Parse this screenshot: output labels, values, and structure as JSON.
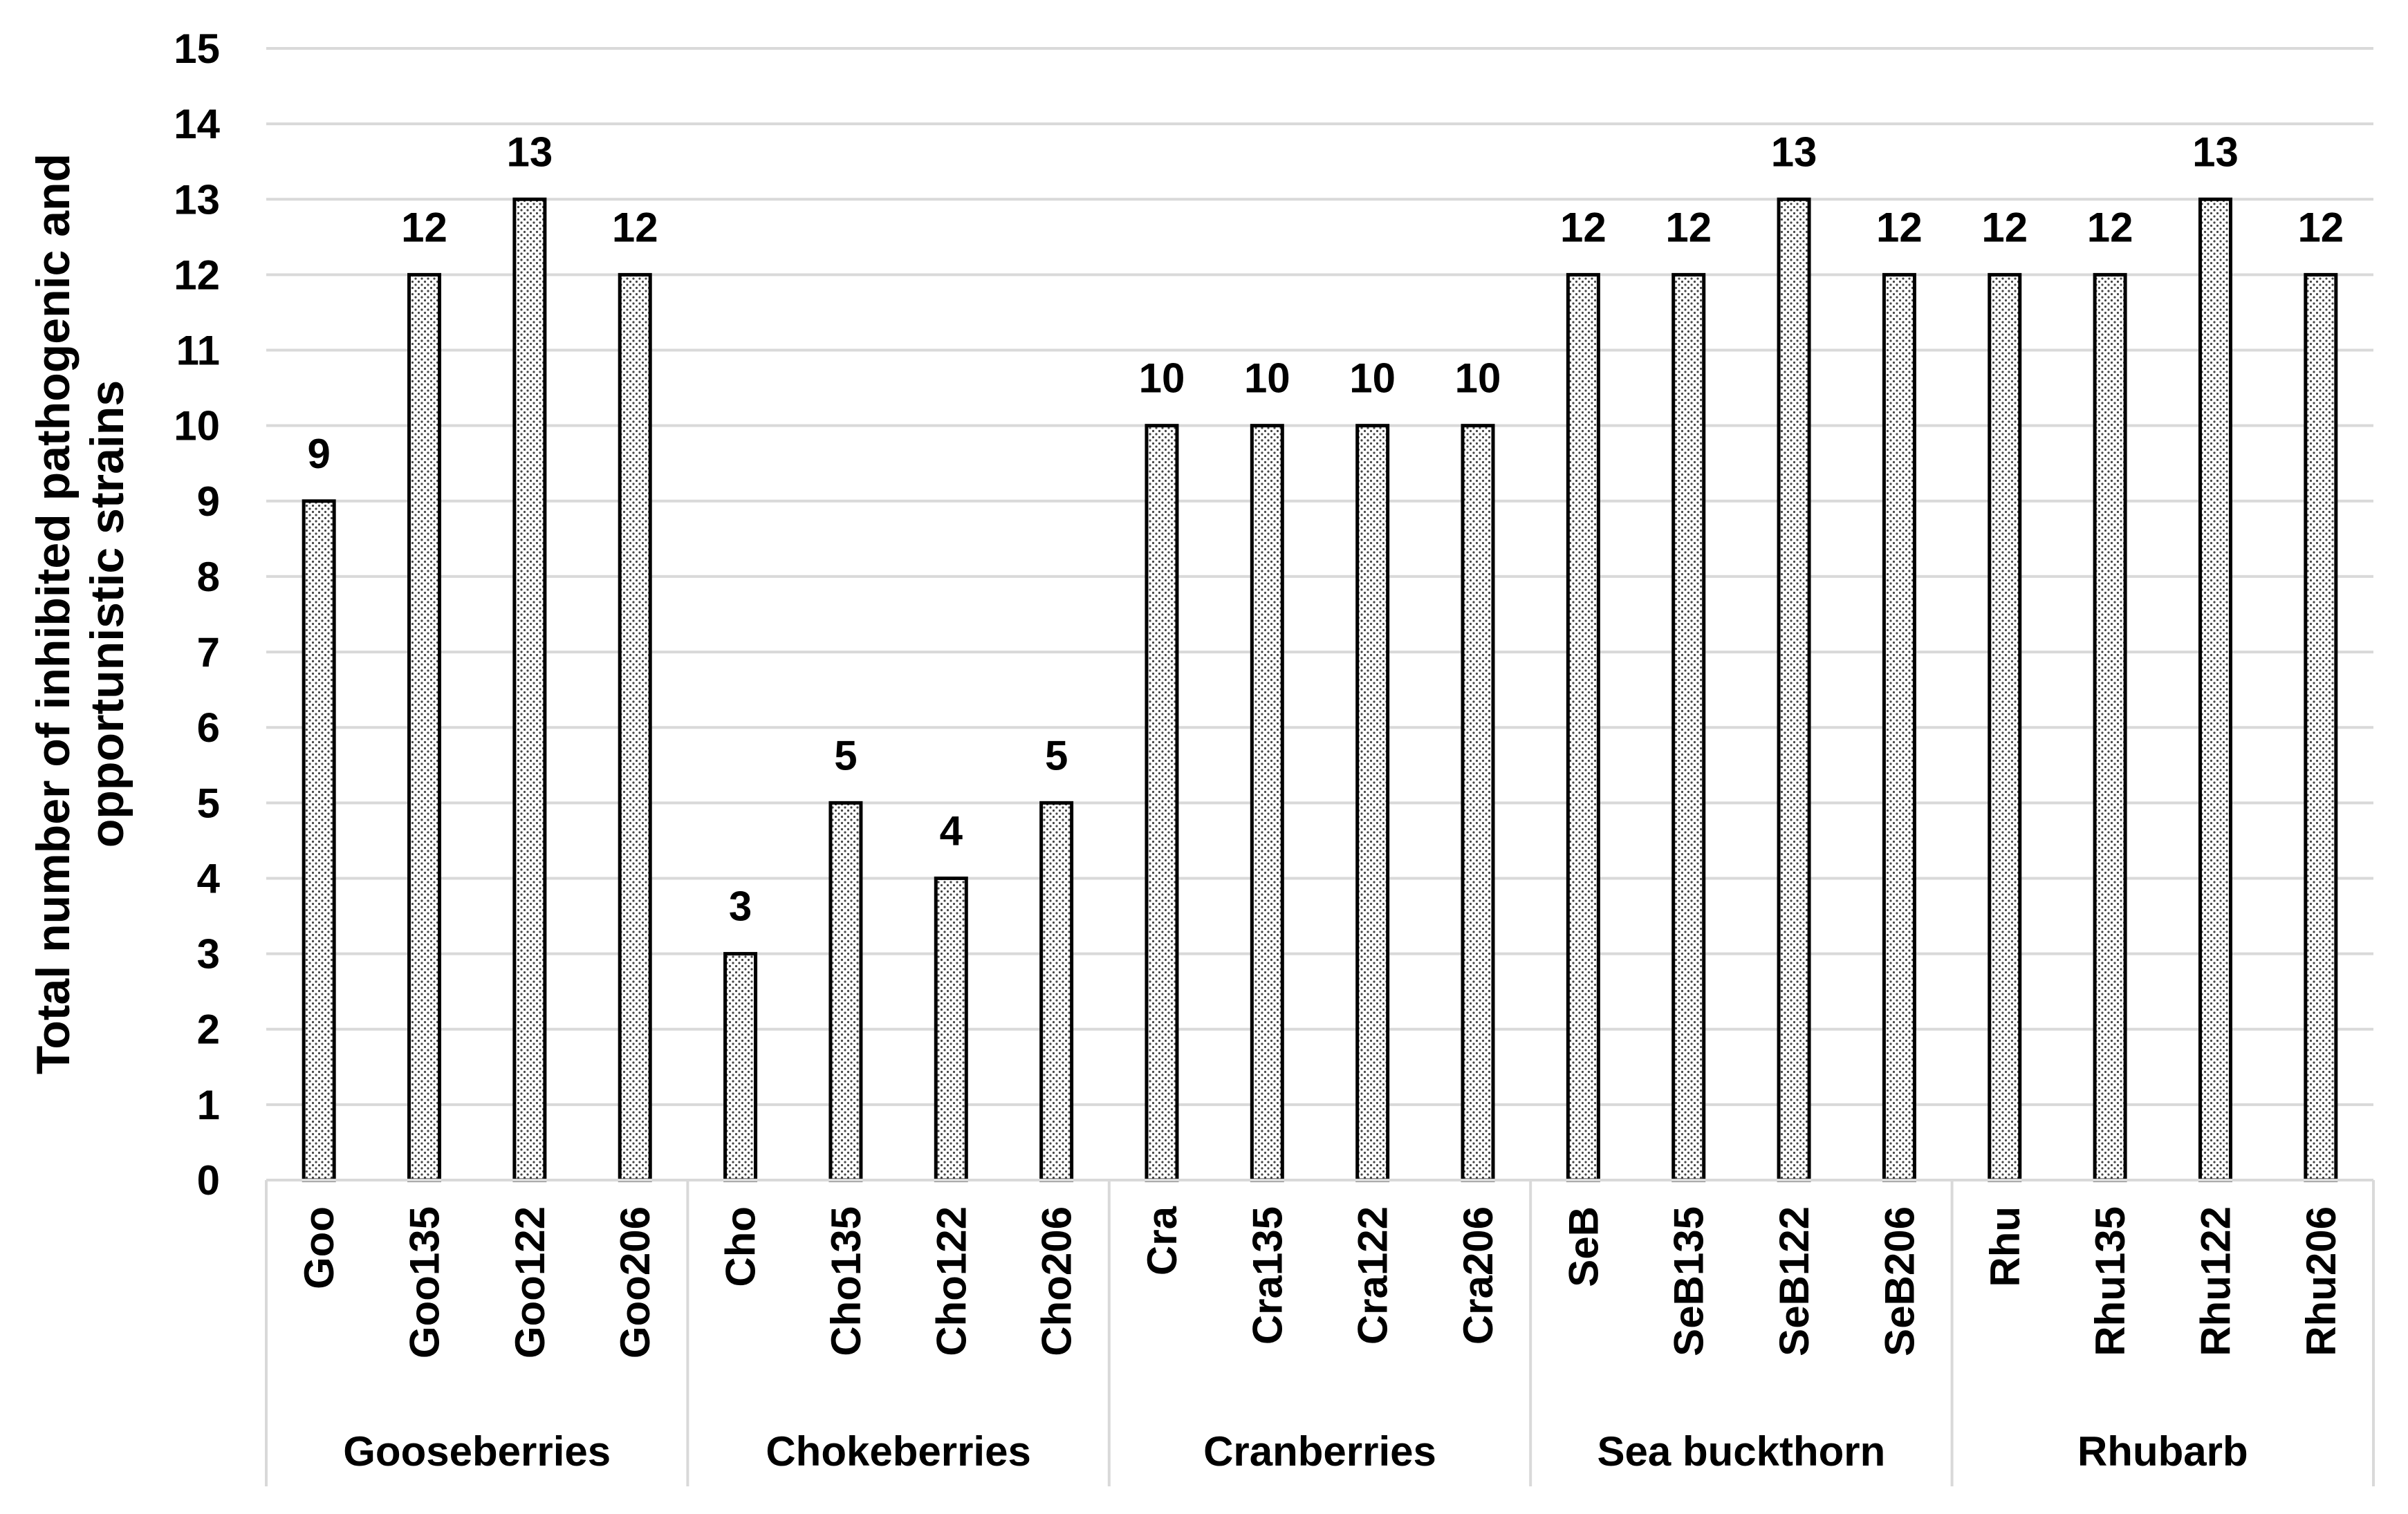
{
  "chart_data": {
    "type": "bar",
    "ylabel": "Total number of inhibited pathogenic and opportunistic strains",
    "xlabel": "",
    "ylim": [
      0,
      15
    ],
    "yticks": [
      0,
      1,
      2,
      3,
      4,
      5,
      6,
      7,
      8,
      9,
      10,
      11,
      12,
      13,
      14,
      15
    ],
    "grid": true,
    "pattern": "dotted",
    "groups": [
      {
        "name": "Gooseberries",
        "categories": [
          "Goo",
          "Goo135",
          "Goo122",
          "Goo206"
        ],
        "values": [
          9,
          12,
          13,
          12
        ]
      },
      {
        "name": "Chokeberries",
        "categories": [
          "Cho",
          "Cho135",
          "Cho122",
          "Cho206"
        ],
        "values": [
          3,
          5,
          4,
          5
        ]
      },
      {
        "name": "Cranberries",
        "categories": [
          "Cra",
          "Cra135",
          "Cra122",
          "Cra206"
        ],
        "values": [
          10,
          10,
          10,
          10
        ]
      },
      {
        "name": "Sea buckthorn",
        "categories": [
          "SeB",
          "SeB135",
          "SeB122",
          "SeB206"
        ],
        "values": [
          12,
          12,
          13,
          12
        ]
      },
      {
        "name": "Rhubarb",
        "categories": [
          "Rhu",
          "Rhu135",
          "Rhu122",
          "Rhu206"
        ],
        "values": [
          12,
          12,
          13,
          12
        ]
      }
    ]
  }
}
